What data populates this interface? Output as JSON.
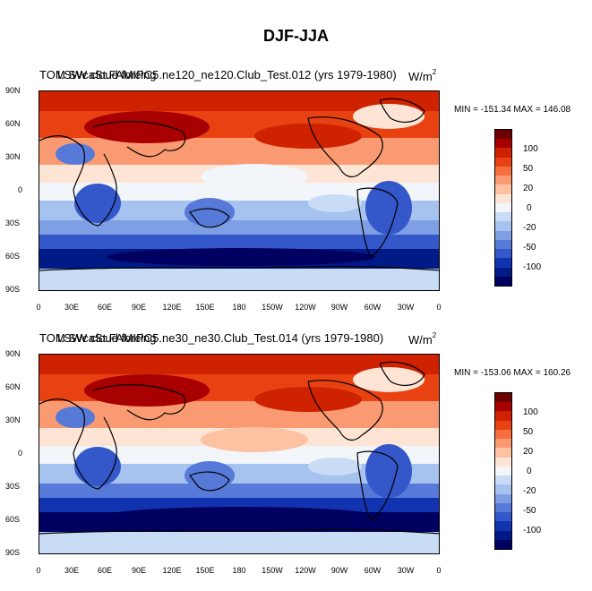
{
  "title": "DJF-JJA",
  "lat_ticks": [
    "90N",
    "60N",
    "30N",
    "0",
    "30S",
    "60S",
    "90S"
  ],
  "lon_ticks": [
    "0",
    "30E",
    "60E",
    "90E",
    "120E",
    "150E",
    "180",
    "150W",
    "120W",
    "90W",
    "60W",
    "30W",
    "0"
  ],
  "colorbar_labels": [
    "100",
    "50",
    "20",
    "0",
    "-20",
    "-50",
    "-100"
  ],
  "colors": [
    "#6a0000",
    "#a80000",
    "#cf2200",
    "#e94212",
    "#f76f3f",
    "#fa9a72",
    "#fcc2a2",
    "#fde4d4",
    "#f2f5f9",
    "#c9dcf5",
    "#a6c3ef",
    "#7f9fe5",
    "#577ad9",
    "#3457c9",
    "#1233b0",
    "#001a86",
    "#000060"
  ],
  "panels": [
    {
      "left_string": "TOM SW cloud forcing",
      "center_string": "I.SWcaSt.FAMIPC5.ne120_ne120.Club_Test.012 (yrs 1979-1980)",
      "units_base": "W/m",
      "units_exp": "2",
      "minmax": "MIN = -151.34  MAX = 146.08"
    },
    {
      "left_string": "TOM SW cloud forcing",
      "center_string": "I.SWcaSt.FAMIPC5.ne30_ne30.Club_Test.014 (yrs 1979-1980)",
      "units_base": "W/m",
      "units_exp": "2",
      "minmax": "MIN = -153.06  MAX = 160.26"
    }
  ]
}
